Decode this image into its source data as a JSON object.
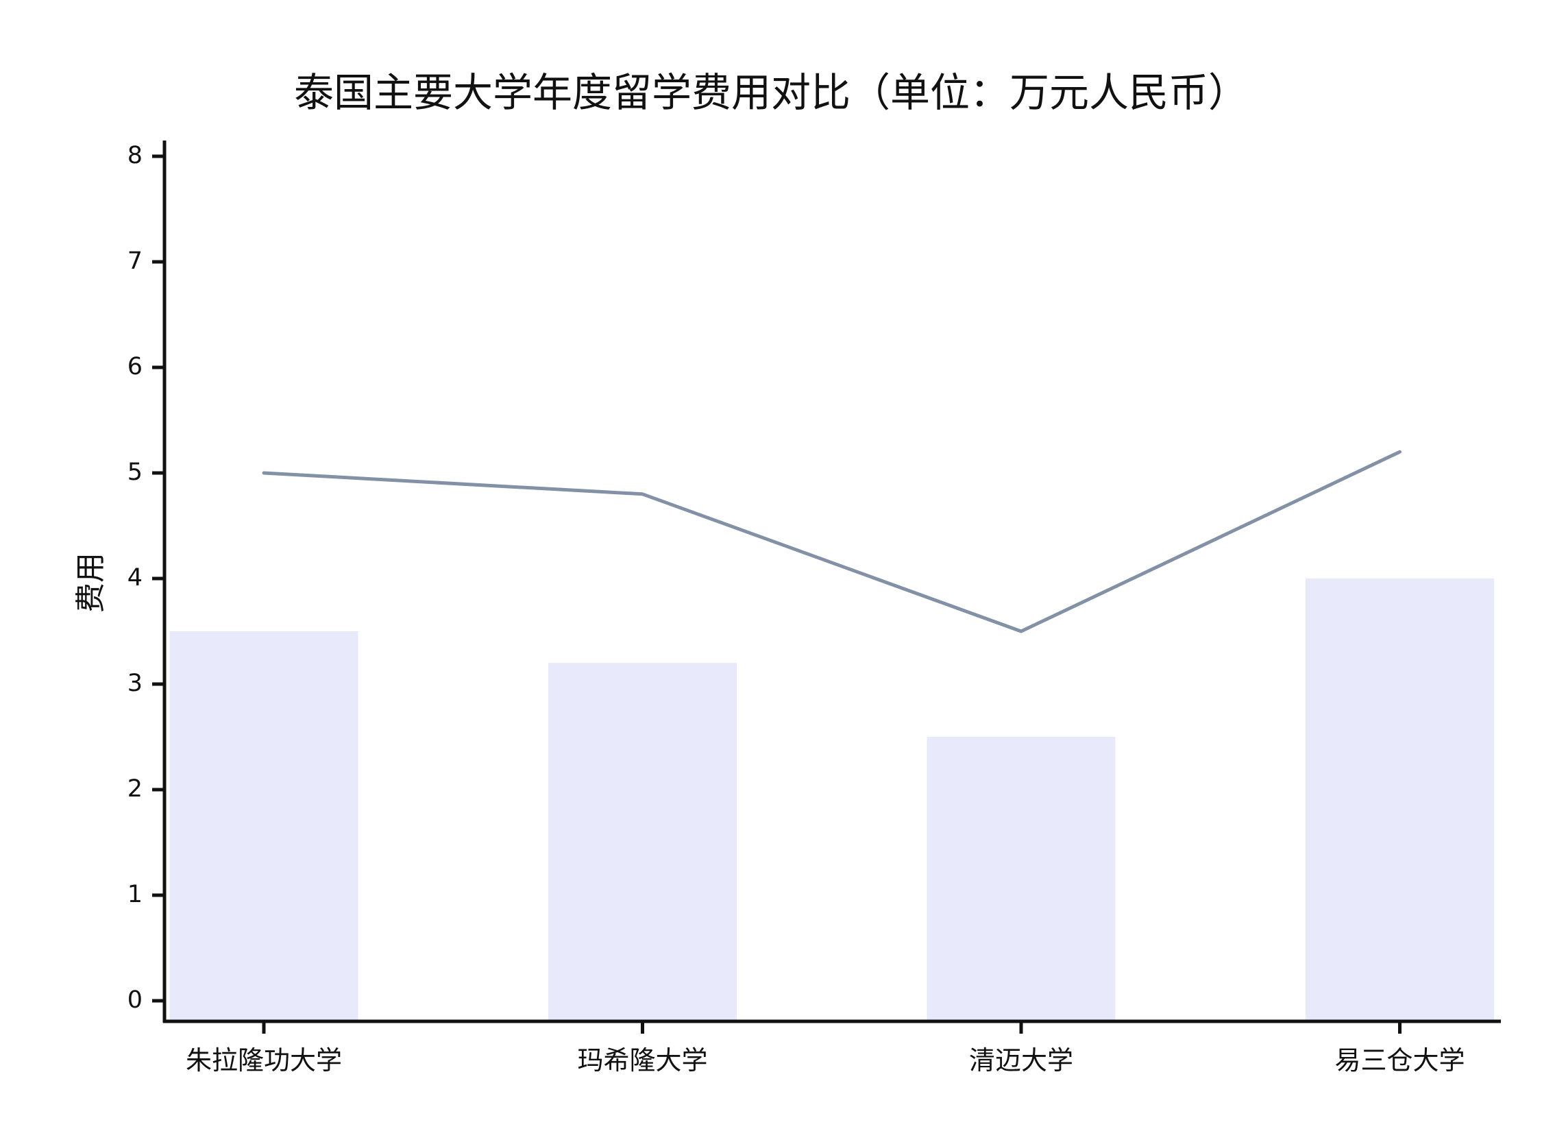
{
  "chart_data": {
    "type": "bar",
    "title": "泰国主要大学年度留学费用对比（单位：万元人民币）",
    "xlabel": "",
    "ylabel": "费用",
    "categories": [
      "朱拉隆功大学",
      "玛希隆大学",
      "清迈大学",
      "易三仓大学"
    ],
    "series": [
      {
        "kind": "bar",
        "values": [
          3.5,
          3.2,
          2.5,
          4.0
        ]
      },
      {
        "kind": "line",
        "values": [
          5.0,
          4.8,
          3.5,
          5.2
        ]
      }
    ],
    "ylim": [
      0,
      8
    ],
    "yticks": [
      0,
      1,
      2,
      3,
      4,
      5,
      6,
      7,
      8
    ],
    "grid": false,
    "colors": {
      "bar": "#e8eafc",
      "line": "#8391a6",
      "axis": "#111111"
    }
  }
}
